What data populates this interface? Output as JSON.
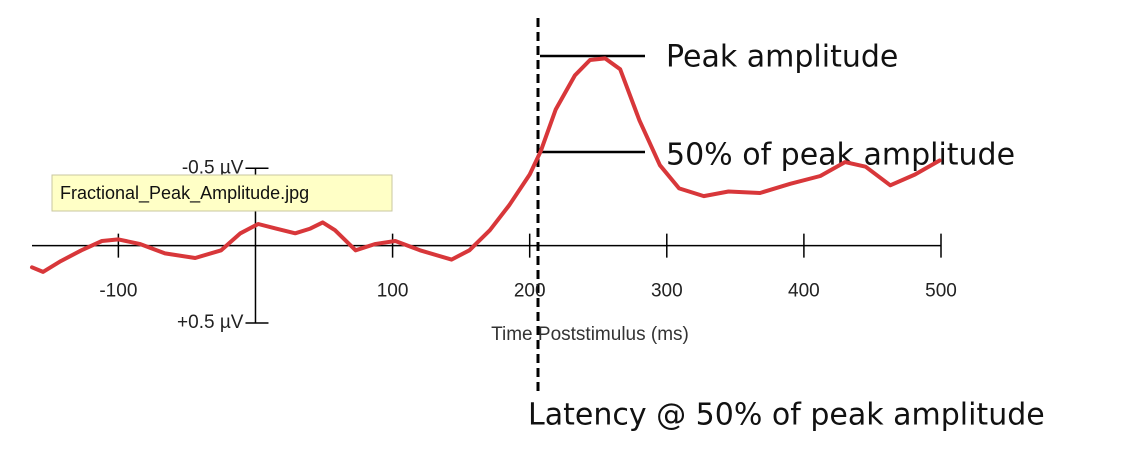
{
  "chart_data": {
    "type": "line",
    "x": [
      -163,
      -155,
      -142,
      -127,
      -112,
      -100,
      -84,
      -66,
      -44,
      -25,
      -11,
      2,
      15,
      29,
      40,
      49,
      58,
      73,
      87,
      102,
      120,
      143,
      156,
      171,
      185,
      200,
      208,
      219,
      233,
      244,
      255,
      266,
      280,
      295,
      309,
      327,
      345,
      368,
      390,
      412,
      430,
      445,
      463,
      481,
      499
    ],
    "values": [
      0.14,
      0.17,
      0.1,
      0.03,
      -0.03,
      -0.04,
      -0.01,
      0.05,
      0.08,
      0.03,
      -0.08,
      -0.14,
      -0.11,
      -0.08,
      -0.11,
      -0.15,
      -0.1,
      0.03,
      -0.01,
      -0.03,
      0.03,
      0.09,
      0.03,
      -0.1,
      -0.26,
      -0.46,
      -0.61,
      -0.88,
      -1.1,
      -1.2,
      -1.21,
      -1.14,
      -0.81,
      -0.52,
      -0.37,
      -0.32,
      -0.35,
      -0.34,
      -0.4,
      -0.45,
      -0.54,
      -0.51,
      -0.39,
      -0.46,
      -0.55
    ],
    "color": "#d8373a",
    "xlim": [
      -163,
      500
    ],
    "ylim": [
      0.5,
      -1.3
    ],
    "xticks": [
      -100,
      100,
      200,
      300,
      400,
      500
    ],
    "yticks": [
      {
        "value": -0.5,
        "label": "-0.5 µV"
      },
      {
        "value": 0.5,
        "label": "+0.5 µV"
      }
    ],
    "xlabel": "Time Poststimulus (ms)",
    "annotations": [
      "Peak amplitude",
      "50% of peak amplitude",
      "Latency @ 50% of peak amplitude"
    ]
  },
  "tooltip": "Fractional_Peak_Amplitude.jpg"
}
